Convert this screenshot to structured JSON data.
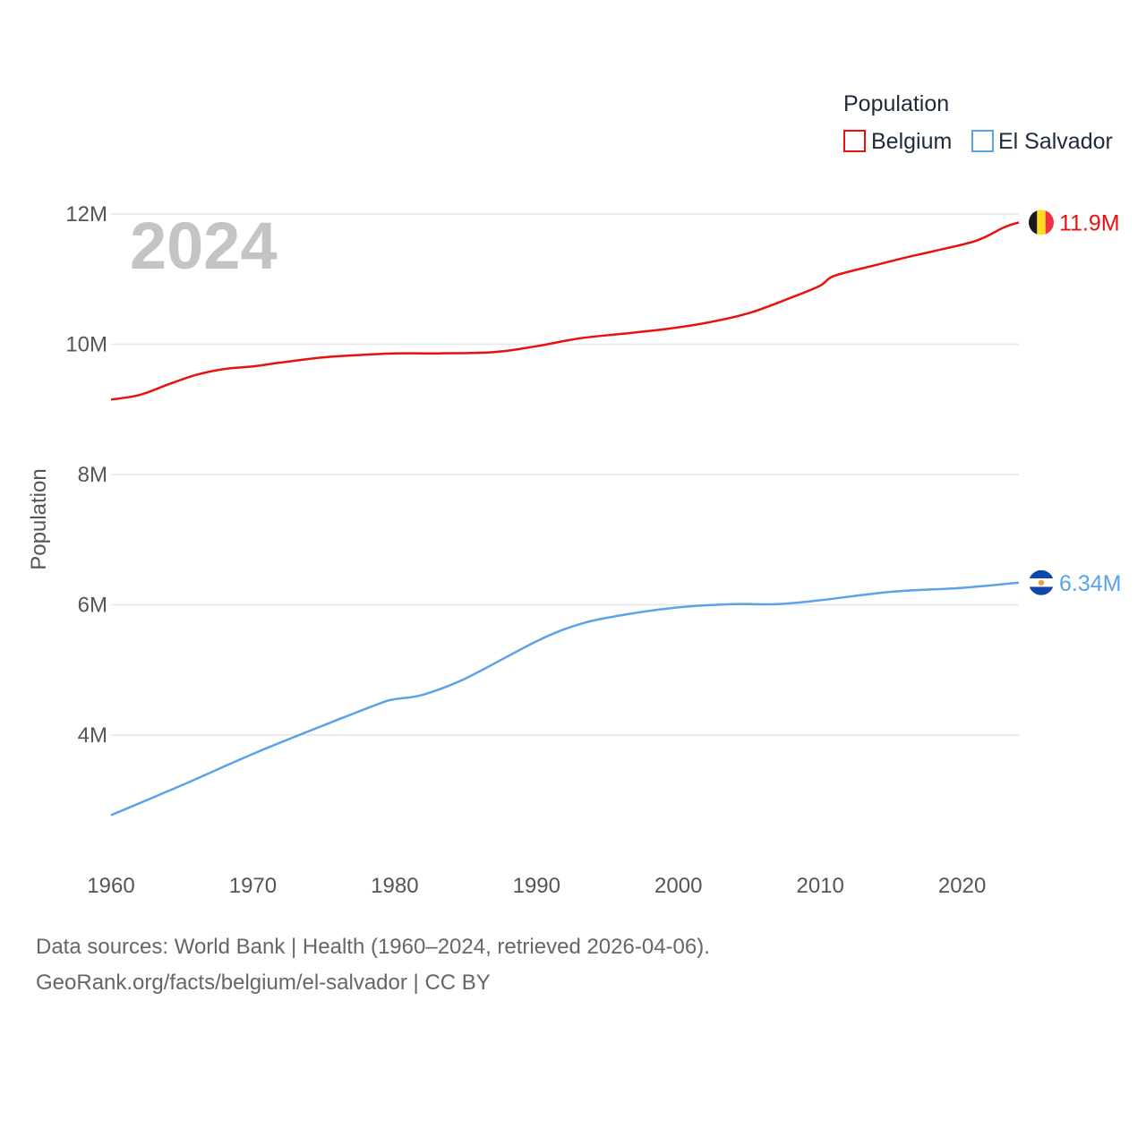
{
  "chart_data": {
    "type": "line",
    "current_year": "2024",
    "ylabel": "Population",
    "ylim": [
      2400000,
      12600000
    ],
    "xlim": [
      1960,
      2024
    ],
    "y_ticks": [
      {
        "value": 4000000,
        "label": "4M"
      },
      {
        "value": 6000000,
        "label": "6M"
      },
      {
        "value": 8000000,
        "label": "8M"
      },
      {
        "value": 10000000,
        "label": "10M"
      },
      {
        "value": 12000000,
        "label": "12M"
      }
    ],
    "x_ticks": [
      {
        "value": 1960,
        "label": "1960"
      },
      {
        "value": 1970,
        "label": "1970"
      },
      {
        "value": 1980,
        "label": "1980"
      },
      {
        "value": 1990,
        "label": "1990"
      },
      {
        "value": 2000,
        "label": "2000"
      },
      {
        "value": 2010,
        "label": "2010"
      },
      {
        "value": 2020,
        "label": "2020"
      }
    ],
    "legend": {
      "title": "Population",
      "position": "top-right"
    },
    "series": [
      {
        "name": "Belgium",
        "color": "#e8110f",
        "end_label": "11.9M",
        "flag": "belgium-flag",
        "x": [
          1960,
          1962,
          1964,
          1966,
          1968,
          1970,
          1972,
          1975,
          1978,
          1980,
          1983,
          1987,
          1990,
          1993,
          1996,
          1999,
          2002,
          2005,
          2008,
          2010,
          2011,
          2014,
          2016,
          2018,
          2021,
          2023,
          2024
        ],
        "values": [
          9150000,
          9220000,
          9380000,
          9530000,
          9620000,
          9660000,
          9720000,
          9800000,
          9840000,
          9860000,
          9860000,
          9880000,
          9970000,
          10090000,
          10160000,
          10230000,
          10330000,
          10480000,
          10720000,
          10900000,
          11050000,
          11220000,
          11330000,
          11430000,
          11590000,
          11800000,
          11870000
        ]
      },
      {
        "name": "El Salvador",
        "color": "#5ba3e6",
        "end_label": "6.34M",
        "flag": "el-salvador-flag",
        "x": [
          1960,
          1965,
          1970,
          1975,
          1979,
          1980,
          1982,
          1985,
          1990,
          1993,
          1996,
          2000,
          2004,
          2007,
          2010,
          2015,
          2020,
          2024
        ],
        "values": [
          2770000,
          3230000,
          3710000,
          4150000,
          4490000,
          4550000,
          4620000,
          4870000,
          5440000,
          5700000,
          5840000,
          5960000,
          6010000,
          6010000,
          6070000,
          6200000,
          6260000,
          6340000
        ]
      }
    ]
  },
  "caption": {
    "line1": "Data sources: World Bank | Health (1960–2024, retrieved 2026-04-06).",
    "line2": "GeoRank.org/facts/belgium/el-salvador | CC BY"
  }
}
